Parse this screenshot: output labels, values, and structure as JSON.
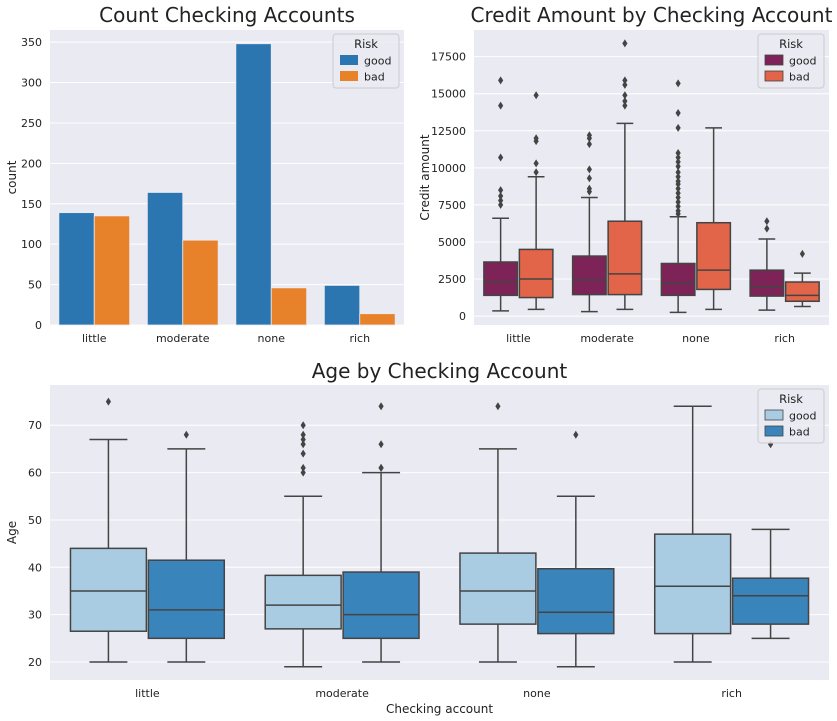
{
  "chart_data": [
    {
      "type": "bar",
      "title": "Count Checking Accounts",
      "xlabel": "",
      "ylabel": "count",
      "categories": [
        "little",
        "moderate",
        "none",
        "rich"
      ],
      "series": [
        {
          "name": "good",
          "color": "#2b76b0",
          "values": [
            139,
            164,
            348,
            49
          ]
        },
        {
          "name": "bad",
          "color": "#e8822a",
          "values": [
            135,
            105,
            46,
            14
          ]
        }
      ],
      "ylim": [
        0,
        365
      ],
      "yticks": [
        0,
        50,
        100,
        150,
        200,
        250,
        300,
        350
      ],
      "legend": {
        "title": "Risk",
        "placement": "top-right"
      },
      "grid": true
    },
    {
      "type": "box",
      "title": "Credit Amount by Checking Account",
      "xlabel": "",
      "ylabel": "Credit amount",
      "categories": [
        "little",
        "moderate",
        "none",
        "rich"
      ],
      "series": [
        {
          "name": "good",
          "color": "#7d2357",
          "boxes": [
            {
              "low": 350,
              "q1": 1400,
              "median": 2300,
              "q3": 3650,
              "high": 6600,
              "outliers": [
                7500,
                7800,
                8100,
                8500,
                10700,
                14200,
                15900
              ]
            },
            {
              "low": 300,
              "q1": 1450,
              "median": 2450,
              "q3": 4050,
              "high": 8000,
              "outliers": [
                8400,
                8600,
                9300,
                9900,
                11600,
                12000,
                12200
              ]
            },
            {
              "low": 250,
              "q1": 1400,
              "median": 2200,
              "q3": 3550,
              "high": 6700,
              "outliers": [
                6900,
                7100,
                7400,
                7700,
                8000,
                8300,
                8600,
                8900,
                9100,
                9400,
                9700,
                10100,
                10400,
                10700,
                11000,
                12700,
                13700,
                15700
              ]
            },
            {
              "low": 400,
              "q1": 1350,
              "median": 1950,
              "q3": 3100,
              "high": 5200,
              "outliers": [
                5900,
                6400
              ]
            }
          ]
        },
        {
          "name": "bad",
          "color": "#e26449",
          "boxes": [
            {
              "low": 450,
              "q1": 1250,
              "median": 2500,
              "q3": 4500,
              "high": 9400,
              "outliers": [
                9700,
                10300,
                11800,
                12000,
                14900
              ]
            },
            {
              "low": 450,
              "q1": 1450,
              "median": 2850,
              "q3": 6400,
              "high": 13000,
              "outliers": [
                14200,
                14500,
                14900,
                15600,
                15900,
                18400
              ]
            },
            {
              "low": 450,
              "q1": 1800,
              "median": 3100,
              "q3": 6300,
              "high": 12700,
              "outliers": []
            },
            {
              "low": 650,
              "q1": 1000,
              "median": 1400,
              "q3": 2300,
              "high": 2900,
              "outliers": [
                4200
              ]
            }
          ]
        }
      ],
      "ylim": [
        -600,
        19300
      ],
      "yticks": [
        0,
        2500,
        5000,
        7500,
        10000,
        12500,
        15000,
        17500
      ],
      "legend": {
        "title": "Risk",
        "placement": "top-right"
      },
      "grid": true
    },
    {
      "type": "box",
      "title": "Age by Checking Account",
      "xlabel": "Checking account",
      "ylabel": "Age",
      "categories": [
        "little",
        "moderate",
        "none",
        "rich"
      ],
      "series": [
        {
          "name": "good",
          "color": "#a9cce3",
          "boxes": [
            {
              "low": 20,
              "q1": 26.5,
              "median": 35,
              "q3": 44,
              "high": 67,
              "outliers": [
                75
              ]
            },
            {
              "low": 19,
              "q1": 27,
              "median": 32,
              "q3": 38.3,
              "high": 55,
              "outliers": [
                60,
                61,
                64,
                66,
                67,
                68,
                70
              ]
            },
            {
              "low": 20,
              "q1": 28,
              "median": 35,
              "q3": 43,
              "high": 65,
              "outliers": [
                74
              ]
            },
            {
              "low": 20,
              "q1": 26,
              "median": 36,
              "q3": 47,
              "high": 74,
              "outliers": []
            }
          ]
        },
        {
          "name": "bad",
          "color": "#3a84bc",
          "boxes": [
            {
              "low": 20,
              "q1": 25,
              "median": 31,
              "q3": 41.5,
              "high": 65,
              "outliers": [
                68
              ]
            },
            {
              "low": 20,
              "q1": 25,
              "median": 30,
              "q3": 39,
              "high": 60,
              "outliers": [
                61,
                61,
                66,
                74
              ]
            },
            {
              "low": 19,
              "q1": 26,
              "median": 30.5,
              "q3": 39.7,
              "high": 55,
              "outliers": [
                68
              ]
            },
            {
              "low": 25,
              "q1": 28,
              "median": 34,
              "q3": 37.7,
              "high": 48,
              "outliers": [
                66
              ]
            }
          ]
        }
      ],
      "ylim": [
        16.2,
        78.5
      ],
      "yticks": [
        20,
        30,
        40,
        50,
        60,
        70
      ],
      "legend": {
        "title": "Risk",
        "placement": "top-right"
      },
      "grid": true
    }
  ],
  "style": {
    "panel_bg": "#eaeaf2",
    "grid": "#ffffff",
    "box_edge": "#444444",
    "text": "#222222"
  }
}
